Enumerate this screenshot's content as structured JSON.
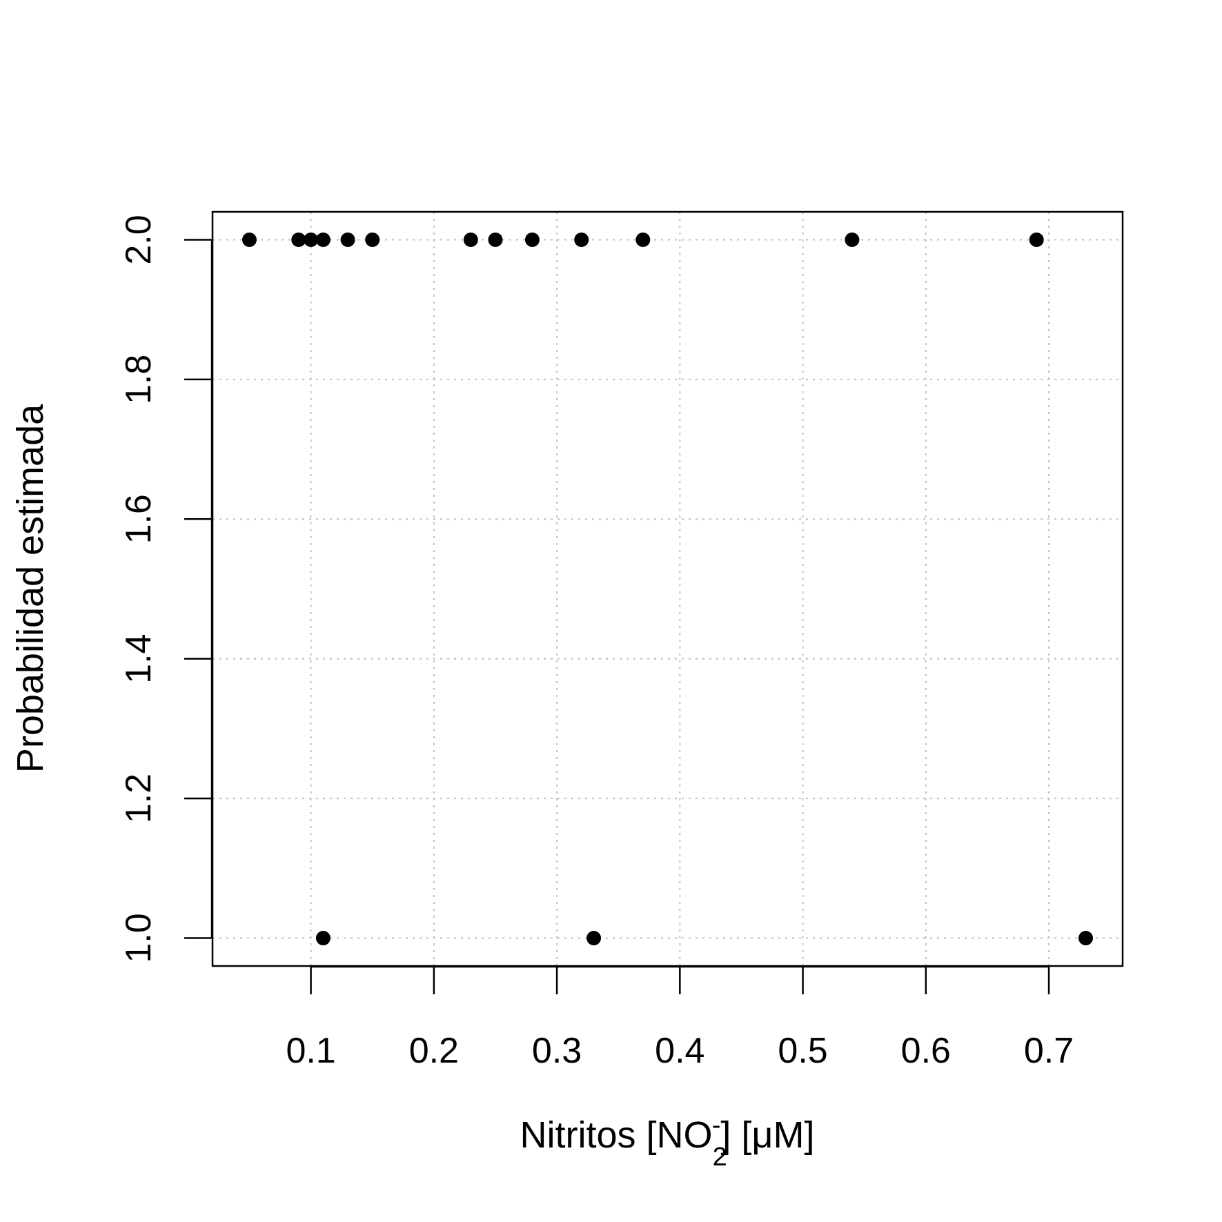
{
  "chart_data": {
    "type": "scatter",
    "title": "",
    "xlabel": {
      "prefix": "Nitritos [NO",
      "subscript": "2",
      "superscript": "-",
      "suffix": "] [μM]"
    },
    "ylabel": "Probabilidad estimada",
    "xlim": [
      0.02,
      0.76
    ],
    "ylim": [
      0.96,
      2.04
    ],
    "x_ticks": [
      "0.1",
      "0.2",
      "0.3",
      "0.4",
      "0.5",
      "0.6",
      "0.7"
    ],
    "y_ticks": [
      "1.0",
      "1.2",
      "1.4",
      "1.6",
      "1.8",
      "2.0"
    ],
    "grid": true,
    "marker_color": "#000000",
    "grid_color": "#bebebe",
    "points": [
      {
        "x": 0.05,
        "y": 2.0
      },
      {
        "x": 0.09,
        "y": 2.0
      },
      {
        "x": 0.1,
        "y": 2.0
      },
      {
        "x": 0.11,
        "y": 2.0
      },
      {
        "x": 0.13,
        "y": 2.0
      },
      {
        "x": 0.15,
        "y": 2.0
      },
      {
        "x": 0.23,
        "y": 2.0
      },
      {
        "x": 0.25,
        "y": 2.0
      },
      {
        "x": 0.28,
        "y": 2.0
      },
      {
        "x": 0.32,
        "y": 2.0
      },
      {
        "x": 0.37,
        "y": 2.0
      },
      {
        "x": 0.54,
        "y": 2.0
      },
      {
        "x": 0.69,
        "y": 2.0
      },
      {
        "x": 0.11,
        "y": 1.0
      },
      {
        "x": 0.33,
        "y": 1.0
      },
      {
        "x": 0.73,
        "y": 1.0
      }
    ]
  }
}
